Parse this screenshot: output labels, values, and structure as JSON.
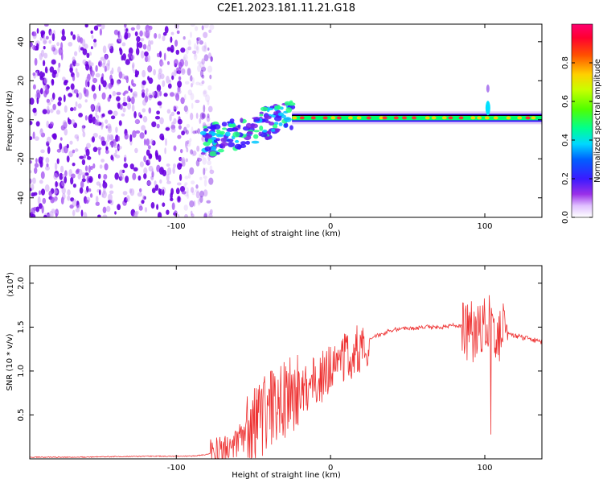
{
  "figure": {
    "title": "C2E1.2023.181.11.21.G18"
  },
  "chart_data": [
    {
      "type": "heatmap",
      "title": "C2E1.2023.181.11.21.G18",
      "xlabel": "Height of straight line (km)",
      "ylabel": "Frequency (Hz)",
      "xlim": [
        -195,
        137
      ],
      "ylim": [
        -50,
        49
      ],
      "x_ticks": [
        -100,
        0,
        100
      ],
      "y_ticks": [
        -40,
        -20,
        0,
        20,
        40
      ],
      "colorbar": {
        "label": "Normalized spectral amplitude",
        "ticks": [
          0.0,
          0.2,
          0.4,
          0.6,
          0.8
        ],
        "range": [
          0,
          1
        ],
        "colormap": [
          "#ffffff",
          "#e8c8ff",
          "#8a1be0",
          "#3a1aff",
          "#00b8ff",
          "#00ff80",
          "#60ff00",
          "#ffd000",
          "#ff4000",
          "#ff0050"
        ]
      },
      "features": {
        "noise_region_km": [
          -195,
          -83
        ],
        "transition_region_km": [
          -83,
          -25
        ],
        "carrier_frequency_hz": 1,
        "carrier_region_km": [
          -25,
          137
        ],
        "spike_at_km": 102
      }
    },
    {
      "type": "line",
      "xlabel": "Height of straight line (km)",
      "ylabel": "SNR (10 * v/v)",
      "y_multiplier": "(x10⁴)",
      "xlim": [
        -195,
        137
      ],
      "ylim": [
        0,
        2.2
      ],
      "x_ticks": [
        -100,
        0,
        100
      ],
      "y_ticks": [
        0.5,
        1.0,
        1.5,
        2.0
      ],
      "y_tick_labels": [
        "0.5",
        "1.0",
        "1.5",
        "2.0"
      ],
      "series": [
        {
          "color": "#ee3333",
          "x": [
            -195,
            -160,
            -120,
            -90,
            -80,
            -70,
            -60,
            -50,
            -40,
            -35,
            -30,
            -25,
            -20,
            -15,
            -10,
            -5,
            0,
            10,
            20,
            30,
            40,
            50,
            60,
            70,
            80,
            85,
            90,
            95,
            100,
            103,
            105,
            107,
            110,
            115,
            120,
            125,
            130,
            137
          ],
          "y": [
            0.02,
            0.02,
            0.03,
            0.03,
            0.05,
            0.1,
            0.2,
            0.35,
            0.55,
            0.62,
            0.68,
            0.72,
            0.78,
            0.82,
            0.9,
            0.95,
            1.05,
            1.15,
            1.3,
            1.4,
            1.47,
            1.48,
            1.5,
            1.5,
            1.52,
            1.5,
            1.45,
            1.45,
            1.5,
            1.6,
            1.55,
            1.5,
            1.45,
            1.42,
            1.4,
            1.38,
            1.36,
            1.33
          ]
        }
      ]
    }
  ]
}
